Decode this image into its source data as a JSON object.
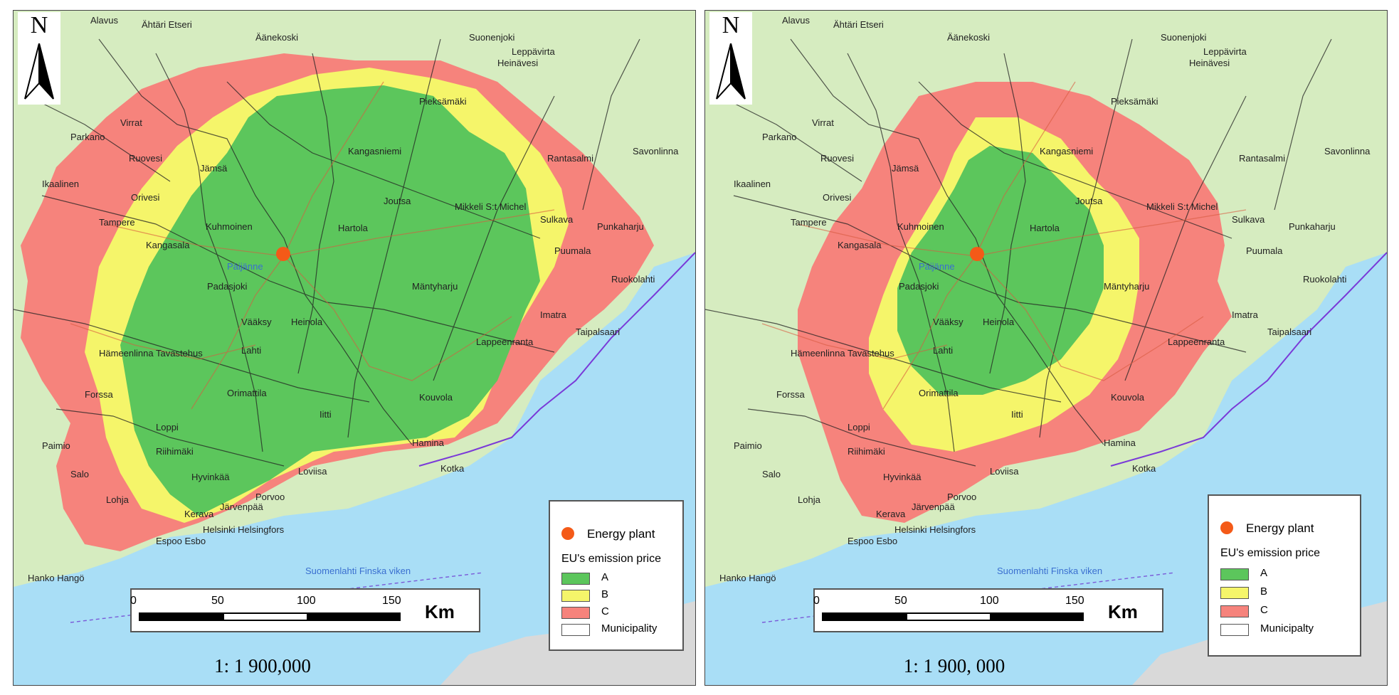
{
  "colors": {
    "zone_a": "#5cc65c",
    "zone_b": "#f5f56a",
    "zone_c": "#f6837c",
    "sea": "#a9def6",
    "land": "#d6ecc0",
    "energy_plant": "#f45a18"
  },
  "maps": [
    {
      "north_label": "N",
      "scale_ratio": "1: 1 900,000",
      "legend": {
        "energy_plant": "Energy plant",
        "title": "EU's emission price",
        "items": [
          {
            "label": "A"
          },
          {
            "label": "B"
          },
          {
            "label": "C"
          },
          {
            "label": "Municipality"
          }
        ]
      },
      "scalebar": {
        "ticks": [
          "0",
          "50",
          "100",
          "150"
        ],
        "unit": "Km"
      },
      "places": [
        "Alavus",
        "Ähtäri Etseri",
        "Äänekoski",
        "Suonenjoki",
        "Pieksämäki",
        "Kangasniemi",
        "Mikkeli S:t Michel",
        "Jämsä",
        "Orivesi",
        "Tampere",
        "Kangasala",
        "Kuhmoinen",
        "Padasjoki",
        "Päijänne",
        "Vääksy",
        "Heinola",
        "Lahti",
        "Hämeenlinna Tavastehus",
        "Forssa",
        "Loppi",
        "Riihimäki",
        "Hyvinkää",
        "Järvenpää",
        "Kerava",
        "Helsinki Helsingfors",
        "Espoo Esbo",
        "Porvoo",
        "Loviisa",
        "Kotka",
        "Hamina",
        "Kouvola",
        "Lappeenranta",
        "Savonlinna",
        "Puumala",
        "Ruokolahti",
        "Joutsa",
        "Hartola",
        "Parkano",
        "Virrat",
        "Ruovesi",
        "Ikaalinen",
        "Salo",
        "Paimio",
        "Hanko Hangö",
        "Lohja",
        "Suomenlahti Finska viken",
        "Heinävesi",
        "Leppävirta",
        "Rantasalmi",
        "Sulkava",
        "Punkaharju",
        "Imatra",
        "Taipalsaari",
        "Mäntyharju",
        "Iitti",
        "Orimattila"
      ]
    },
    {
      "north_label": "N",
      "scale_ratio": "1: 1 900, 000",
      "legend": {
        "energy_plant": "Energy plant",
        "title": "EU's emission price",
        "items": [
          {
            "label": "A"
          },
          {
            "label": "B"
          },
          {
            "label": "C"
          },
          {
            "label": "Municipalty"
          }
        ]
      },
      "scalebar": {
        "ticks": [
          "0",
          "50",
          "100",
          "150"
        ],
        "unit": "Km"
      },
      "places": [
        "Alavus",
        "Ähtäri Etseri",
        "Äänekoski",
        "Suonenjoki",
        "Pieksämäki",
        "Kangasniemi",
        "Mikkeli S:t Michel",
        "Jämsä",
        "Orivesi",
        "Tampere",
        "Kangasala",
        "Kuhmoinen",
        "Padasjoki",
        "Päijänne",
        "Vääksy",
        "Heinola",
        "Lahti",
        "Hämeenlinna Tavastehus",
        "Forssa",
        "Loppi",
        "Riihimäki",
        "Hyvinkää",
        "Järvenpää",
        "Kerava",
        "Helsinki Helsingfors",
        "Espoo Esbo",
        "Porvoo",
        "Loviisa",
        "Kotka",
        "Hamina",
        "Kouvola",
        "Lappeenranta",
        "Savonlinna",
        "Puumala",
        "Ruokolahti",
        "Joutsa",
        "Hartola",
        "Parkano",
        "Virrat",
        "Ruovesi",
        "Ikaalinen",
        "Salo",
        "Paimio",
        "Hanko Hangö",
        "Lohja",
        "Suomenlahti Finska viken",
        "Heinävesi",
        "Leppävirta",
        "Rantasalmi",
        "Sulkava",
        "Punkaharju",
        "Imatra",
        "Taipalsaari",
        "Mäntyharju",
        "Iitti",
        "Orimattila"
      ]
    }
  ]
}
